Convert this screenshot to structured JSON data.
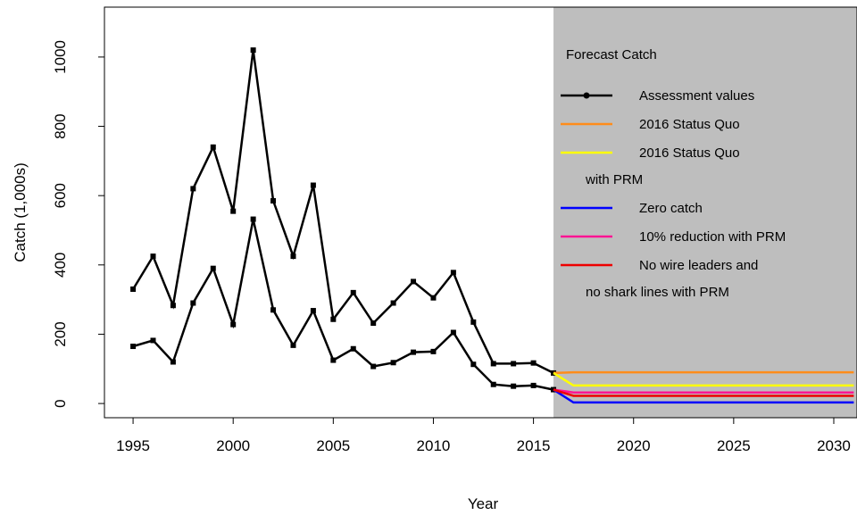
{
  "chart_data": {
    "type": "line",
    "xlabel": "Year",
    "ylabel": "Catch (1,000s)",
    "xlim": [
      1993.57,
      2031.16
    ],
    "ylim": [
      -41,
      1144
    ],
    "xticks": [
      1995,
      2000,
      2005,
      2010,
      2015,
      2020,
      2025,
      2030
    ],
    "yticks": [
      0,
      200,
      400,
      600,
      800,
      1000
    ],
    "forecast_region": {
      "start": 2016,
      "color": "#bebebe"
    },
    "legend_title": "Forecast Catch",
    "x": [
      1995,
      1996,
      1997,
      1998,
      1999,
      2000,
      2001,
      2002,
      2003,
      2004,
      2005,
      2006,
      2007,
      2008,
      2009,
      2010,
      2011,
      2012,
      2013,
      2014,
      2015,
      2016
    ],
    "series": [
      {
        "name": [
          "Assessment values"
        ],
        "color": "#000000",
        "marker": true,
        "values": [
          330,
          425,
          283,
          620,
          740,
          555,
          1020,
          585,
          425,
          630,
          243,
          320,
          232,
          290,
          352,
          305,
          378,
          235,
          115,
          115,
          117,
          88
        ]
      },
      {
        "color": "#000000",
        "marker": true,
        "values": [
          165,
          182,
          120,
          290,
          390,
          228,
          532,
          270,
          168,
          268,
          125,
          158,
          107,
          118,
          148,
          150,
          205,
          113,
          55,
          50,
          52,
          40
        ]
      },
      {
        "name": [
          "2016 Status Quo"
        ],
        "color": "#ff8c1a",
        "x": [
          2016,
          2017,
          2031
        ],
        "values": [
          88,
          90,
          90
        ]
      },
      {
        "name": [
          "2016 Status Quo",
          "with PRM"
        ],
        "color": "#ffff00",
        "x": [
          2016,
          2017,
          2031
        ],
        "values": [
          88,
          52,
          52
        ]
      },
      {
        "name": [
          "Zero catch"
        ],
        "color": "#0000ff",
        "x": [
          2016,
          2017,
          2031
        ],
        "values": [
          40,
          3,
          3
        ]
      },
      {
        "name": [
          "10% reduction with PRM"
        ],
        "color": "#ff1493",
        "x": [
          2016,
          2017,
          2031
        ],
        "values": [
          40,
          32,
          32
        ]
      },
      {
        "name": [
          "No wire leaders and",
          "no shark lines with PRM"
        ],
        "color": "#ee0000",
        "x": [
          2016,
          2017,
          2031
        ],
        "values": [
          40,
          22,
          22
        ]
      }
    ]
  }
}
